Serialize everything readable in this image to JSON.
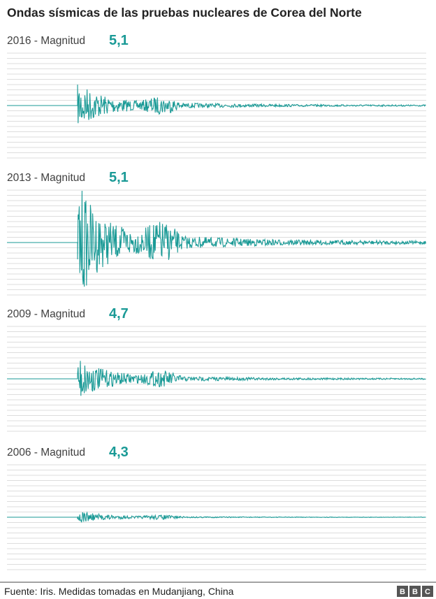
{
  "title": "Ondas sísmicas de las pruebas nucleares de Corea del Norte",
  "panels": [
    {
      "label": "2016 - Magnitud",
      "magnitude": "5,1"
    },
    {
      "label": "2013 - Magnitud",
      "magnitude": "5,1"
    },
    {
      "label": "2009 - Magnitud",
      "magnitude": "4,7"
    },
    {
      "label": "2006 - Magnitud",
      "magnitude": "4,3"
    }
  ],
  "footer": {
    "source": "Fuente: Iris. Medidas tomadas en Mudanjiang, China",
    "logo": "BBC"
  }
}
